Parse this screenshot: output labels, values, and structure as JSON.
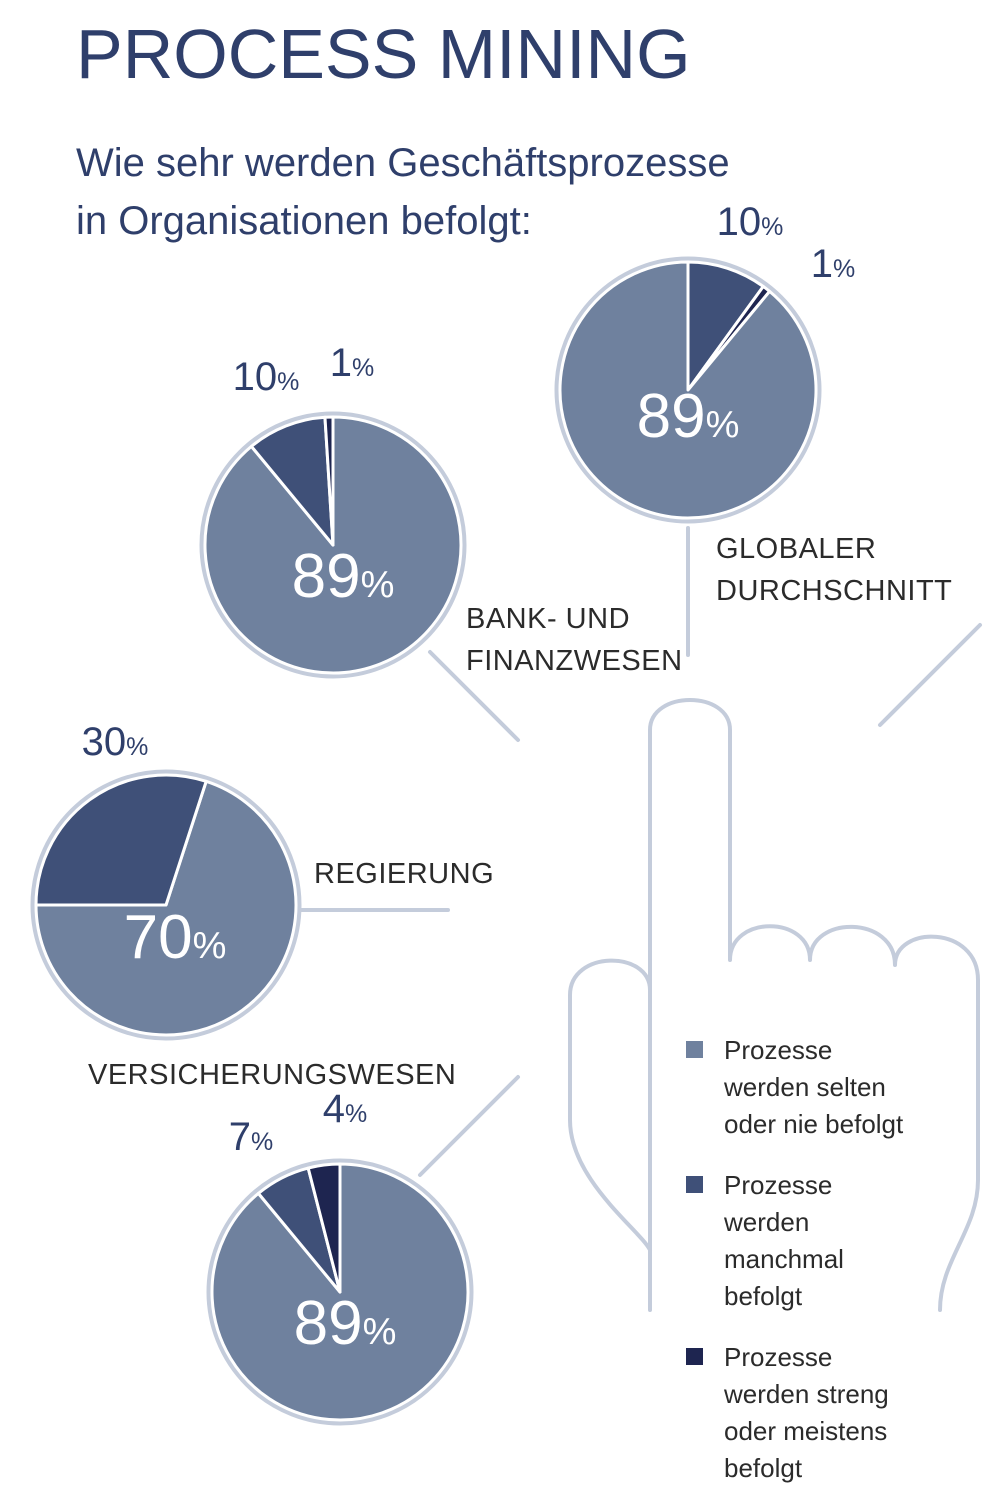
{
  "title": "PROCESS MINING",
  "subtitle": [
    "Wie sehr werden Geschäftsprozesse",
    "in Organisationen befolgt:"
  ],
  "colors": {
    "selten": "#6f819e",
    "manchmal": "#3f5078",
    "streng": "#1e2550",
    "outline": "#c4ccdb",
    "divider": "#ffffff",
    "label_dark": "#2f3f6b",
    "label_light": "#ffffff"
  },
  "legend": [
    {
      "lines": [
        "Prozesse",
        "werden selten",
        "oder nie befolgt"
      ],
      "color_key": "selten"
    },
    {
      "lines": [
        "Prozesse",
        "werden",
        "manchmal",
        "befolgt"
      ],
      "color_key": "manchmal"
    },
    {
      "lines": [
        "Prozesse",
        "werden streng",
        "oder meistens",
        "befolgt"
      ],
      "color_key": "streng"
    }
  ],
  "chart_data": [
    {
      "type": "pie",
      "title": [
        "GLOBALER",
        "DURCHSCHNITT"
      ],
      "series": [
        {
          "name": "Prozesse werden selten oder nie befolgt",
          "value": 89
        },
        {
          "name": "Prozesse werden manchmal befolgt",
          "value": 10
        },
        {
          "name": "Prozesse werden streng oder meistens befolgt",
          "value": 1
        }
      ]
    },
    {
      "type": "pie",
      "title": [
        "BANK- UND",
        "FINANZWESEN"
      ],
      "series": [
        {
          "name": "Prozesse werden selten oder nie befolgt",
          "value": 89
        },
        {
          "name": "Prozesse werden manchmal befolgt",
          "value": 10
        },
        {
          "name": "Prozesse werden streng oder meistens befolgt",
          "value": 1
        }
      ]
    },
    {
      "type": "pie",
      "title": [
        "REGIERUNG"
      ],
      "series": [
        {
          "name": "Prozesse werden selten oder nie befolgt",
          "value": 70
        },
        {
          "name": "Prozesse werden manchmal befolgt",
          "value": 30
        }
      ]
    },
    {
      "type": "pie",
      "title": [
        "VERSICHERUNGSWESEN"
      ],
      "series": [
        {
          "name": "Prozesse werden selten oder nie befolgt",
          "value": 89
        },
        {
          "name": "Prozesse werden manchmal befolgt",
          "value": 7
        },
        {
          "name": "Prozesse werden streng oder meistens befolgt",
          "value": 4
        }
      ]
    }
  ]
}
